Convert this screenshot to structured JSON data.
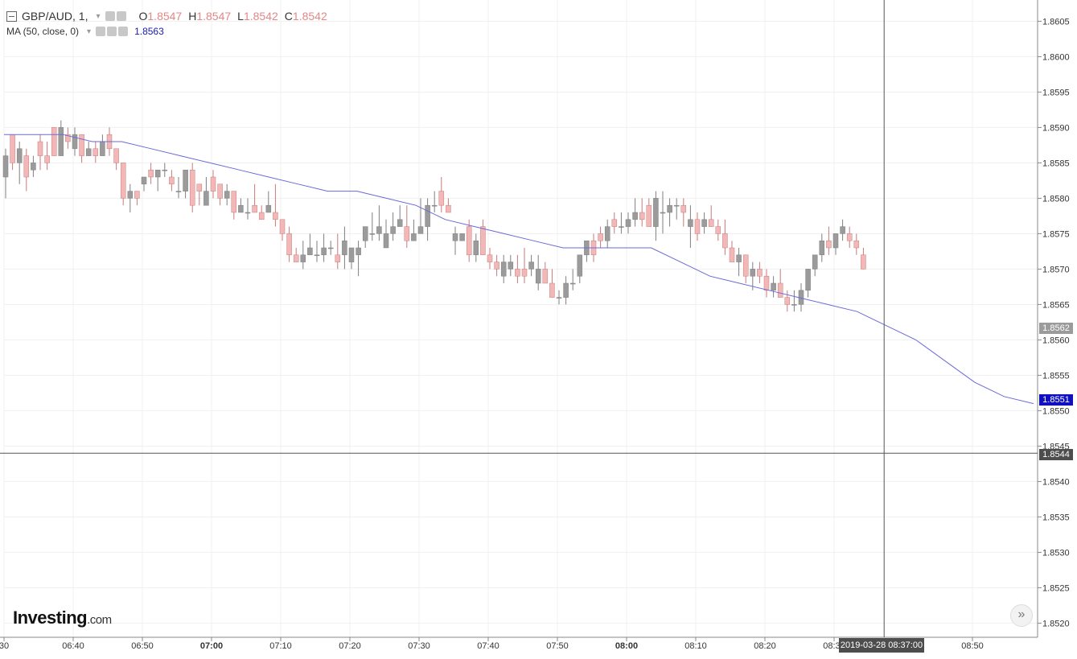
{
  "header": {
    "symbol": "GBP/AUD, 1,",
    "open_label": "O",
    "open": "1.8547",
    "high_label": "H",
    "high": "1.8547",
    "low_label": "L",
    "low": "1.8542",
    "close_label": "C",
    "close": "1.8542"
  },
  "ma_legend": {
    "label": "MA (50, close, 0)",
    "value": "1.8563"
  },
  "logo": {
    "text": "Investing",
    "suffix": ".com"
  },
  "tags": {
    "last_price": "1.8562",
    "ma_price": "1.8551",
    "crosshair_price": "1.8544",
    "crosshair_time": "2019-03-28 08:37:00"
  },
  "colors": {
    "up": "#9b9b9b",
    "down": "#f2b8b8",
    "ma": "#6a6ad8",
    "last": "#9b9b9b",
    "ma_tag": "#1010c0",
    "cross_tag": "#4d4d4d"
  },
  "chart_data": {
    "type": "candlestick",
    "ylim": [
      1.8518,
      1.8608
    ],
    "y_ticks": [
      "1.8605",
      "1.8600",
      "1.8595",
      "1.8590",
      "1.8585",
      "1.8580",
      "1.8575",
      "1.8570",
      "1.8565",
      "1.8560",
      "1.8555",
      "1.8550",
      "1.8545",
      "1.8540",
      "1.8535",
      "1.8530",
      "1.8525",
      "1.8520"
    ],
    "x_ticks": [
      {
        "label": "30",
        "bold": false,
        "minute": 630
      },
      {
        "label": "06:40",
        "bold": false,
        "minute": 640
      },
      {
        "label": "06:50",
        "bold": false,
        "minute": 650
      },
      {
        "label": "07:00",
        "bold": true,
        "minute": 660
      },
      {
        "label": "07:10",
        "bold": false,
        "minute": 670
      },
      {
        "label": "07:20",
        "bold": false,
        "minute": 680
      },
      {
        "label": "07:30",
        "bold": false,
        "minute": 690
      },
      {
        "label": "07:40",
        "bold": false,
        "minute": 700
      },
      {
        "label": "07:50",
        "bold": false,
        "minute": 710
      },
      {
        "label": "08:00",
        "bold": true,
        "minute": 720
      },
      {
        "label": "08:10",
        "bold": false,
        "minute": 730
      },
      {
        "label": "08:20",
        "bold": false,
        "minute": 740
      },
      {
        "label": "08:30",
        "bold": false,
        "minute": 750
      },
      {
        "label": "08:50",
        "bold": false,
        "minute": 770
      }
    ],
    "start_minute": 630,
    "crosshair": {
      "minute": 757,
      "price": 1.8544
    },
    "candles": [
      [
        1.8583,
        1.8587,
        1.858,
        1.8586
      ],
      [
        1.8589,
        1.8589,
        1.8584,
        1.8585
      ],
      [
        1.8585,
        1.8588,
        1.8582,
        1.8587
      ],
      [
        1.8586,
        1.8587,
        1.8581,
        1.8583
      ],
      [
        1.8584,
        1.8586,
        1.8583,
        1.8585
      ],
      [
        1.8588,
        1.8589,
        1.8584,
        1.8586
      ],
      [
        1.8586,
        1.8588,
        1.8584,
        1.8585
      ],
      [
        1.859,
        1.859,
        1.8586,
        1.8586
      ],
      [
        1.8586,
        1.8591,
        1.8586,
        1.859
      ],
      [
        1.8589,
        1.859,
        1.8587,
        1.8588
      ],
      [
        1.8587,
        1.859,
        1.8586,
        1.8589
      ],
      [
        1.8589,
        1.8589,
        1.8585,
        1.8586
      ],
      [
        1.8586,
        1.8588,
        1.8586,
        1.8587
      ],
      [
        1.8587,
        1.8588,
        1.8585,
        1.8586
      ],
      [
        1.8586,
        1.8589,
        1.8586,
        1.8588
      ],
      [
        1.8589,
        1.859,
        1.8586,
        1.8587
      ],
      [
        1.8587,
        1.8587,
        1.8584,
        1.8585
      ],
      [
        1.8585,
        1.8585,
        1.8579,
        1.858
      ],
      [
        1.858,
        1.8582,
        1.8578,
        1.8581
      ],
      [
        1.8581,
        1.8581,
        1.8579,
        1.858
      ],
      [
        1.8582,
        1.8583,
        1.8581,
        1.8583
      ],
      [
        1.8584,
        1.8585,
        1.8582,
        1.8583
      ],
      [
        1.8583,
        1.8584,
        1.8581,
        1.8584
      ],
      [
        1.8584,
        1.8585,
        1.8583,
        1.8584
      ],
      [
        1.8583,
        1.8584,
        1.8581,
        1.8582
      ],
      [
        1.8581,
        1.8583,
        1.858,
        1.8581
      ],
      [
        1.8581,
        1.8584,
        1.858,
        1.8584
      ],
      [
        1.8584,
        1.8585,
        1.8578,
        1.8579
      ],
      [
        1.8582,
        1.8582,
        1.8579,
        1.8581
      ],
      [
        1.8579,
        1.8583,
        1.8579,
        1.8581
      ],
      [
        1.8583,
        1.8584,
        1.858,
        1.8581
      ],
      [
        1.8582,
        1.8582,
        1.8579,
        1.858
      ],
      [
        1.858,
        1.8582,
        1.8579,
        1.8581
      ],
      [
        1.8581,
        1.8581,
        1.8577,
        1.8578
      ],
      [
        1.8578,
        1.858,
        1.8578,
        1.8579
      ],
      [
        1.8578,
        1.858,
        1.8577,
        1.8578
      ],
      [
        1.8579,
        1.8582,
        1.8578,
        1.8578
      ],
      [
        1.8578,
        1.8579,
        1.8577,
        1.8577
      ],
      [
        1.8578,
        1.8581,
        1.8578,
        1.8579
      ],
      [
        1.8578,
        1.8582,
        1.8576,
        1.8577
      ],
      [
        1.8577,
        1.8577,
        1.8574,
        1.8575
      ],
      [
        1.8575,
        1.8576,
        1.8571,
        1.8572
      ],
      [
        1.8572,
        1.8573,
        1.8571,
        1.8571
      ],
      [
        1.8571,
        1.8574,
        1.857,
        1.8572
      ],
      [
        1.8572,
        1.8575,
        1.8572,
        1.8573
      ],
      [
        1.8572,
        1.8574,
        1.8571,
        1.8572
      ],
      [
        1.8572,
        1.8575,
        1.8571,
        1.8573
      ],
      [
        1.8573,
        1.8574,
        1.8572,
        1.8573
      ],
      [
        1.8572,
        1.8575,
        1.857,
        1.8571
      ],
      [
        1.8572,
        1.8576,
        1.857,
        1.8574
      ],
      [
        1.8571,
        1.8573,
        1.857,
        1.8573
      ],
      [
        1.8572,
        1.8574,
        1.8569,
        1.8573
      ],
      [
        1.8574,
        1.8576,
        1.8573,
        1.8576
      ],
      [
        1.8575,
        1.8578,
        1.8574,
        1.8575
      ],
      [
        1.8575,
        1.8579,
        1.8574,
        1.8576
      ],
      [
        1.8573,
        1.8577,
        1.8573,
        1.8575
      ],
      [
        1.8575,
        1.8578,
        1.8574,
        1.8576
      ],
      [
        1.8576,
        1.8579,
        1.8576,
        1.8577
      ],
      [
        1.8576,
        1.8579,
        1.8573,
        1.8574
      ],
      [
        1.8574,
        1.8577,
        1.8574,
        1.8575
      ],
      [
        1.8575,
        1.858,
        1.8575,
        1.8576
      ],
      [
        1.8576,
        1.858,
        1.8574,
        1.8579
      ],
      [
        1.8579,
        1.8581,
        1.8578,
        1.8579
      ],
      [
        1.8581,
        1.8583,
        1.8578,
        1.8579
      ],
      [
        1.8579,
        1.858,
        1.8578,
        1.8578
      ],
      [
        1.8574,
        1.8576,
        1.8572,
        1.8575
      ],
      [
        1.8574,
        1.8575,
        1.8574,
        1.8575
      ],
      [
        1.8576,
        1.8577,
        1.8571,
        1.8572
      ],
      [
        1.8572,
        1.8575,
        1.8571,
        1.8574
      ],
      [
        1.8576,
        1.8577,
        1.8572,
        1.8572
      ],
      [
        1.8572,
        1.8573,
        1.857,
        1.8571
      ],
      [
        1.8571,
        1.8572,
        1.8569,
        1.857
      ],
      [
        1.8569,
        1.8572,
        1.8568,
        1.8571
      ],
      [
        1.857,
        1.8572,
        1.8569,
        1.8571
      ],
      [
        1.857,
        1.8572,
        1.8568,
        1.8569
      ],
      [
        1.857,
        1.8573,
        1.8568,
        1.8569
      ],
      [
        1.857,
        1.8572,
        1.8569,
        1.8571
      ],
      [
        1.8568,
        1.8572,
        1.8567,
        1.857
      ],
      [
        1.857,
        1.8571,
        1.8568,
        1.8568
      ],
      [
        1.8568,
        1.857,
        1.8566,
        1.8566
      ],
      [
        1.8566,
        1.8567,
        1.8565,
        1.8566
      ],
      [
        1.8566,
        1.8569,
        1.8565,
        1.8568
      ],
      [
        1.8568,
        1.857,
        1.8567,
        1.8568
      ],
      [
        1.8569,
        1.8572,
        1.8568,
        1.8572
      ],
      [
        1.8572,
        1.8574,
        1.8571,
        1.8574
      ],
      [
        1.8574,
        1.8575,
        1.8571,
        1.8572
      ],
      [
        1.8575,
        1.8576,
        1.8573,
        1.8574
      ],
      [
        1.8574,
        1.8577,
        1.8573,
        1.8576
      ],
      [
        1.8577,
        1.8578,
        1.8575,
        1.8576
      ],
      [
        1.8576,
        1.8578,
        1.8575,
        1.8576
      ],
      [
        1.8576,
        1.8578,
        1.8575,
        1.8577
      ],
      [
        1.8577,
        1.858,
        1.8576,
        1.8578
      ],
      [
        1.8578,
        1.858,
        1.8576,
        1.8577
      ],
      [
        1.8579,
        1.858,
        1.8576,
        1.8576
      ],
      [
        1.8576,
        1.8581,
        1.8574,
        1.858
      ],
      [
        1.8578,
        1.8581,
        1.8575,
        1.8578
      ],
      [
        1.8578,
        1.858,
        1.8576,
        1.8579
      ],
      [
        1.8579,
        1.858,
        1.8577,
        1.8579
      ],
      [
        1.8579,
        1.858,
        1.8576,
        1.8578
      ],
      [
        1.8576,
        1.8579,
        1.8573,
        1.8577
      ],
      [
        1.8577,
        1.8578,
        1.8574,
        1.8575
      ],
      [
        1.8576,
        1.8578,
        1.8575,
        1.8577
      ],
      [
        1.8577,
        1.8579,
        1.8576,
        1.8576
      ],
      [
        1.8576,
        1.8577,
        1.8574,
        1.8575
      ],
      [
        1.8575,
        1.8577,
        1.8572,
        1.8573
      ],
      [
        1.8573,
        1.8574,
        1.8571,
        1.8571
      ],
      [
        1.8571,
        1.8573,
        1.8569,
        1.8572
      ],
      [
        1.8572,
        1.8572,
        1.8568,
        1.8569
      ],
      [
        1.8569,
        1.8571,
        1.8567,
        1.857
      ],
      [
        1.857,
        1.8571,
        1.8568,
        1.8569
      ],
      [
        1.8569,
        1.857,
        1.8566,
        1.8567
      ],
      [
        1.8567,
        1.8569,
        1.8566,
        1.8568
      ],
      [
        1.8568,
        1.857,
        1.8566,
        1.8566
      ],
      [
        1.8566,
        1.8567,
        1.8564,
        1.8565
      ],
      [
        1.8565,
        1.8567,
        1.8564,
        1.8565
      ],
      [
        1.8565,
        1.8568,
        1.8564,
        1.8567
      ],
      [
        1.8567,
        1.857,
        1.8566,
        1.857
      ],
      [
        1.857,
        1.8572,
        1.8569,
        1.8572
      ],
      [
        1.8572,
        1.8575,
        1.8571,
        1.8574
      ],
      [
        1.8574,
        1.8576,
        1.8572,
        1.8573
      ],
      [
        1.8573,
        1.8575,
        1.8572,
        1.8575
      ],
      [
        1.8575,
        1.8577,
        1.8574,
        1.8576
      ],
      [
        1.8575,
        1.8576,
        1.8573,
        1.8574
      ],
      [
        1.8574,
        1.8575,
        1.8572,
        1.8573
      ],
      [
        1.8572,
        1.8573,
        1.857,
        1.857
      ]
    ],
    "ma50": [
      1.8589,
      1.8589,
      1.8589,
      1.8588,
      1.8588,
      1.8587,
      1.8586,
      1.8585,
      1.8584,
      1.8583,
      1.8582,
      1.8581,
      1.8581,
      1.858,
      1.8579,
      1.8577,
      1.8576,
      1.8575,
      1.8574,
      1.8573,
      1.8573,
      1.8573,
      1.8573,
      1.8571,
      1.8569,
      1.8568,
      1.8567,
      1.8566,
      1.8565,
      1.8564,
      1.8562,
      1.856,
      1.8557,
      1.8554,
      1.8552,
      1.8551
    ]
  }
}
